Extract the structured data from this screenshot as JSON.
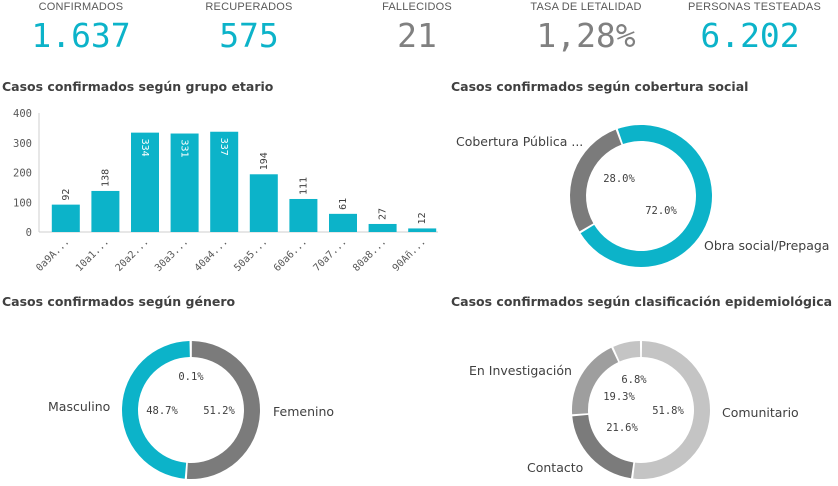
{
  "colors": {
    "teal": "#0cb3c9",
    "dark_gray": "#7b7b7b",
    "mid_gray": "#9e9e9e",
    "light_gray": "#c4c4c4",
    "text": "#404040",
    "kpi_gray": "#808080"
  },
  "kpis": [
    {
      "label": "CONFIRMADOS",
      "value": "1.637",
      "color": "#0cb3c9"
    },
    {
      "label": "RECUPERADOS",
      "value": "575",
      "color": "#0cb3c9"
    },
    {
      "label": "FALLECIDOS",
      "value": "21",
      "color": "#808080"
    },
    {
      "label": "TASA DE LETALIDAD",
      "value": "1,28%",
      "color": "#808080"
    },
    {
      "label": "PERSONAS TESTEADAS",
      "value": "6.202",
      "color": "#0cb3c9"
    }
  ],
  "panels": {
    "age_title": "Casos confirmados según grupo etario",
    "coverage_title": "Casos confirmados según cobertura social",
    "gender_title": "Casos confirmados según género",
    "epi_title": "Casos confirmados según clasificación epidemiológica"
  },
  "chart_data": [
    {
      "type": "bar",
      "title": "Casos confirmados según grupo etario",
      "categories": [
        "0a9A...",
        "10a1...",
        "20a2...",
        "30a3...",
        "40a4...",
        "50a5...",
        "60a6...",
        "70a7...",
        "80a8...",
        "90Añ..."
      ],
      "values": [
        92,
        138,
        334,
        331,
        337,
        194,
        111,
        61,
        27,
        12
      ],
      "data_labels": [
        "92",
        "138",
        "334",
        "331",
        "337",
        "194",
        "111",
        "61",
        "27",
        "12"
      ],
      "ylim": [
        0,
        400
      ],
      "yticks": [
        "400",
        "300",
        "200",
        "100",
        "0"
      ],
      "color": "#0cb3c9"
    },
    {
      "type": "pie",
      "title": "Casos confirmados según cobertura social",
      "series": [
        {
          "name": "Obra social/Prepaga",
          "value": 72.0,
          "pct_label": "72.0%",
          "color": "#0cb3c9"
        },
        {
          "name": "Cobertura Pública ...",
          "value": 28.0,
          "pct_label": "28.0%",
          "color": "#7b7b7b"
        }
      ]
    },
    {
      "type": "pie",
      "title": "Casos confirmados según género",
      "series": [
        {
          "name": "Femenino",
          "value": 51.2,
          "pct_label": "51.2%",
          "color": "#7b7b7b"
        },
        {
          "name": "Masculino",
          "value": 48.7,
          "pct_label": "48.7%",
          "color": "#0cb3c9"
        },
        {
          "name": "",
          "value": 0.1,
          "pct_label": "0.1%",
          "color": "#c4c4c4"
        }
      ]
    },
    {
      "type": "pie",
      "title": "Casos confirmados según clasificación epidemiológica",
      "series": [
        {
          "name": "Comunitario",
          "value": 51.8,
          "pct_label": "51.8%",
          "color": "#c4c4c4"
        },
        {
          "name": "Contacto",
          "value": 21.6,
          "pct_label": "21.6%",
          "color": "#7b7b7b"
        },
        {
          "name": "En Investigación",
          "value": 19.3,
          "pct_label": "19.3%",
          "color": "#9e9e9e"
        },
        {
          "name": "",
          "value": 6.8,
          "pct_label": "6.8%",
          "color": "#c4c4c4"
        }
      ]
    }
  ]
}
